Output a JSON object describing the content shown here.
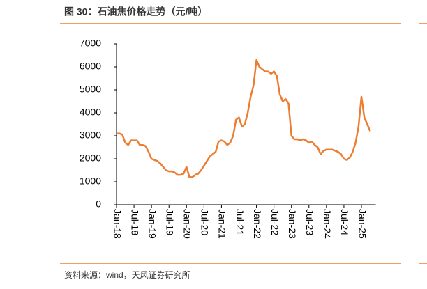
{
  "chart_data": {
    "type": "line",
    "title": "图 30：石油焦价格走势（元/吨）",
    "source": "资料来源：wind，天风证券研究所",
    "x": [
      "Jan-18",
      "Feb-18",
      "Mar-18",
      "Apr-18",
      "May-18",
      "Jun-18",
      "Jul-18",
      "Aug-18",
      "Sep-18",
      "Oct-18",
      "Nov-18",
      "Dec-18",
      "Jan-19",
      "Feb-19",
      "Mar-19",
      "Apr-19",
      "May-19",
      "Jun-19",
      "Jul-19",
      "Aug-19",
      "Sep-19",
      "Oct-19",
      "Nov-19",
      "Dec-19",
      "Jan-20",
      "Feb-20",
      "Mar-20",
      "Apr-20",
      "May-20",
      "Jun-20",
      "Jul-20",
      "Aug-20",
      "Sep-20",
      "Oct-20",
      "Nov-20",
      "Dec-20",
      "Jan-21",
      "Feb-21",
      "Mar-21",
      "Apr-21",
      "May-21",
      "Jun-21",
      "Jul-21",
      "Aug-21",
      "Sep-21",
      "Oct-21",
      "Nov-21",
      "Dec-21",
      "Jan-22",
      "Feb-22",
      "Mar-22",
      "Apr-22",
      "May-22",
      "Jun-22",
      "Jul-22",
      "Aug-22",
      "Sep-22",
      "Oct-22",
      "Nov-22",
      "Dec-22",
      "Jan-23",
      "Feb-23",
      "Mar-23",
      "Apr-23",
      "May-23",
      "Jun-23",
      "Jul-23",
      "Aug-23",
      "Sep-23",
      "Oct-23",
      "Nov-23",
      "Dec-23",
      "Jan-24",
      "Feb-24",
      "Mar-24",
      "Apr-24",
      "May-24",
      "Jun-24",
      "Jul-24",
      "Aug-24",
      "Sep-24",
      "Oct-24",
      "Nov-24",
      "Dec-24",
      "Jan-25",
      "Feb-25",
      "Mar-25",
      "Apr-25"
    ],
    "series": [
      {
        "color": "#ed7d31",
        "values": [
          3100,
          3100,
          3050,
          2700,
          2600,
          2800,
          2800,
          2800,
          2600,
          2600,
          2550,
          2300,
          2000,
          1950,
          1900,
          1800,
          1650,
          1500,
          1450,
          1450,
          1400,
          1300,
          1300,
          1350,
          1650,
          1200,
          1200,
          1300,
          1350,
          1500,
          1700,
          1900,
          2100,
          2200,
          2300,
          2750,
          2800,
          2750,
          2600,
          2700,
          3000,
          3700,
          3800,
          3400,
          3500,
          4000,
          4700,
          5200,
          6300,
          6000,
          5900,
          5800,
          5800,
          5700,
          5800,
          5600,
          4800,
          4500,
          4600,
          4400,
          3000,
          2850,
          2850,
          2800,
          2850,
          2800,
          2700,
          2750,
          2600,
          2500,
          2200,
          2350,
          2400,
          2400,
          2400,
          2350,
          2300,
          2200,
          2000,
          1950,
          2050,
          2300,
          2700,
          3400,
          4700,
          3800,
          3500,
          3200
        ]
      }
    ],
    "xticks": [
      "Jan-18",
      "Jul-18",
      "Jan-19",
      "Jul-19",
      "Jan-20",
      "Jul-20",
      "Jan-21",
      "Jul-21",
      "Jan-22",
      "Jul-22",
      "Jan-23",
      "Jul-23",
      "Jan-24",
      "Jul-24",
      "Jan-25"
    ],
    "ylim": [
      0,
      7000
    ],
    "yticks": [
      0,
      1000,
      2000,
      3000,
      4000,
      5000,
      6000,
      7000
    ]
  }
}
